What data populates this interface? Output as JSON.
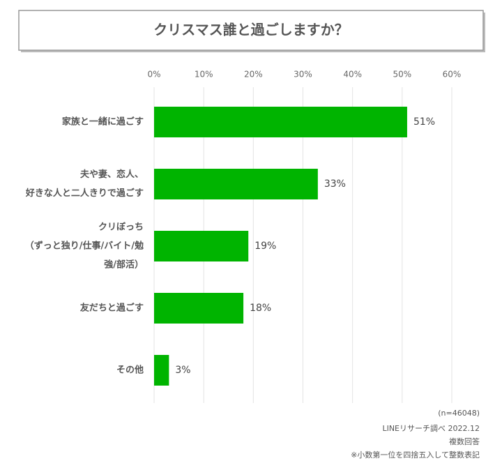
{
  "chart_data": {
    "type": "barh",
    "title": "クリスマス誰と過ごしますか？",
    "categories": [
      [
        "家族と一緒に過ごす"
      ],
      [
        "夫や妻、恋人、",
        "好きな人と二人きりで過ごす"
      ],
      [
        "クリぼっち",
        "（ずっと独り/仕事/バイト/勉",
        "強/部活）"
      ],
      [
        "友だちと過ごす"
      ],
      [
        "その他"
      ]
    ],
    "values": [
      51,
      33,
      19,
      18,
      3
    ],
    "value_labels": [
      "51%",
      "33%",
      "19%",
      "18%",
      "3%"
    ],
    "color": "#00b400",
    "xlim": [
      0,
      60
    ],
    "xticks": [
      {
        "value": 0,
        "label": "0%"
      },
      {
        "value": 10,
        "label": "10%"
      },
      {
        "value": 20,
        "label": "20%"
      },
      {
        "value": 30,
        "label": "30%"
      },
      {
        "value": 40,
        "label": "40%"
      },
      {
        "value": 50,
        "label": "50%"
      },
      {
        "value": 60,
        "label": "60%"
      }
    ],
    "grid": true,
    "notes": [
      "(n=46048)",
      "LINEリサーチ調べ 2022.12",
      "複数回答",
      "※小数第一位を四捨五入して整数表記"
    ]
  }
}
